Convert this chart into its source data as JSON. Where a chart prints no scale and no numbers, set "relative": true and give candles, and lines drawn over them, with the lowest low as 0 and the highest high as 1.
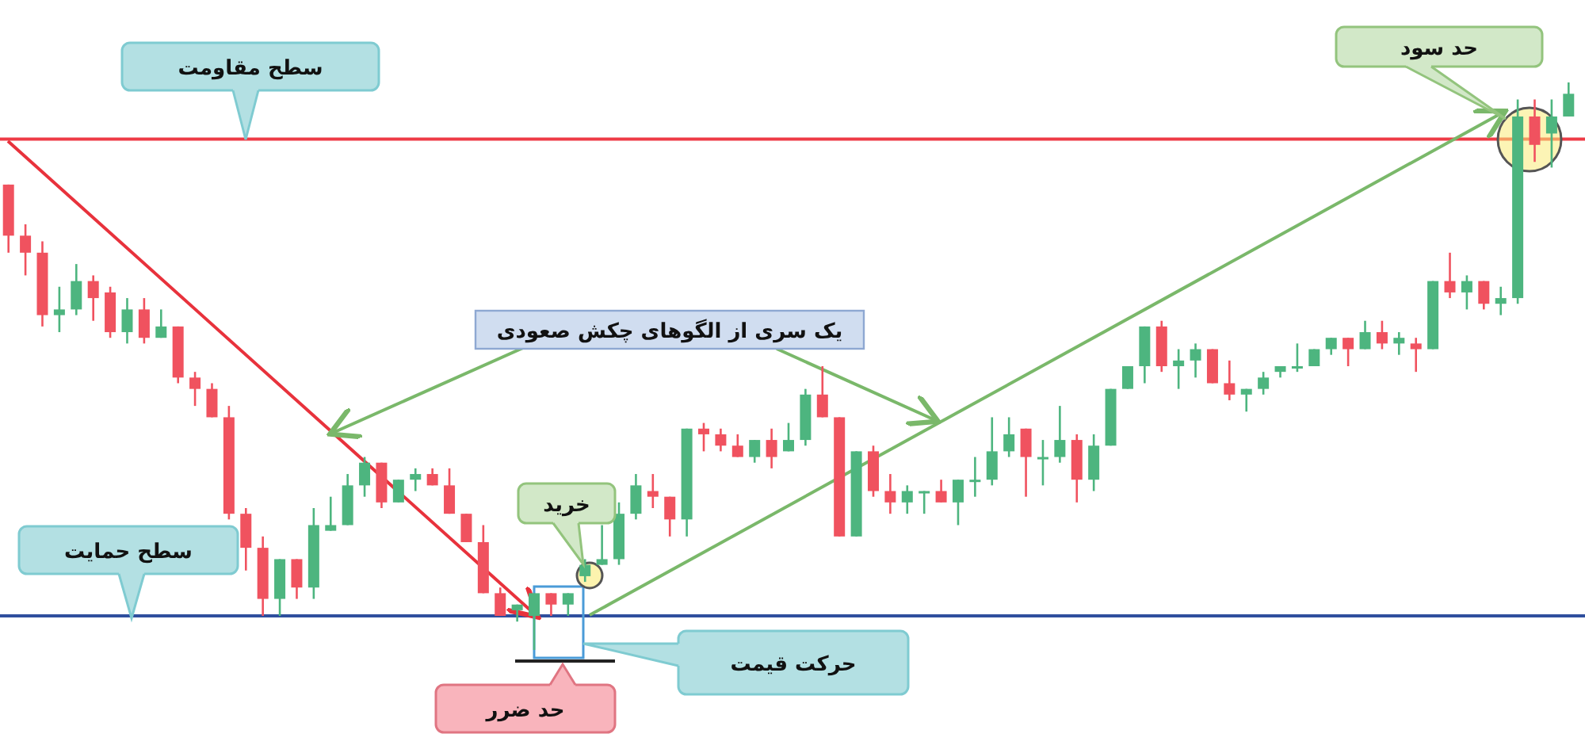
{
  "chart_data": {
    "type": "candlestick",
    "relative": true,
    "categories": [
      null,
      null,
      null,
      null,
      null,
      null,
      null,
      null,
      null,
      null,
      null,
      null,
      null,
      null,
      null,
      null,
      null,
      null,
      null,
      null,
      null,
      null,
      null,
      null,
      null,
      null,
      null,
      null,
      null,
      null,
      null,
      null,
      null,
      null,
      null,
      null,
      null,
      null,
      null,
      null,
      null,
      null,
      null,
      null,
      null,
      null,
      null,
      null,
      null,
      null,
      null,
      null,
      null,
      null,
      null,
      null,
      null,
      null,
      null,
      null,
      null,
      null,
      null,
      null,
      null,
      null,
      null,
      null,
      null,
      null,
      null,
      null,
      null,
      null,
      null,
      null,
      null,
      null,
      null,
      null,
      null,
      null,
      null,
      null,
      null,
      null,
      null,
      null,
      null,
      null,
      null,
      null,
      null
    ],
    "ohlc": [
      [
        0.82,
        0.82,
        0.7,
        0.73
      ],
      [
        0.73,
        0.75,
        0.66,
        0.7
      ],
      [
        0.7,
        0.72,
        0.57,
        0.59
      ],
      [
        0.59,
        0.64,
        0.56,
        0.6
      ],
      [
        0.6,
        0.68,
        0.59,
        0.65
      ],
      [
        0.65,
        0.66,
        0.58,
        0.62
      ],
      [
        0.63,
        0.64,
        0.55,
        0.56
      ],
      [
        0.56,
        0.62,
        0.54,
        0.6
      ],
      [
        0.6,
        0.62,
        0.54,
        0.55
      ],
      [
        0.55,
        0.6,
        0.55,
        0.57
      ],
      [
        0.57,
        0.57,
        0.47,
        0.48
      ],
      [
        0.48,
        0.49,
        0.43,
        0.46
      ],
      [
        0.46,
        0.47,
        0.41,
        0.41
      ],
      [
        0.41,
        0.43,
        0.23,
        0.24
      ],
      [
        0.24,
        0.25,
        0.14,
        0.18
      ],
      [
        0.18,
        0.2,
        0.06,
        0.09
      ],
      [
        0.09,
        0.16,
        0.06,
        0.16
      ],
      [
        0.16,
        0.16,
        0.09,
        0.11
      ],
      [
        0.11,
        0.25,
        0.09,
        0.22
      ],
      [
        0.21,
        0.27,
        0.21,
        0.22
      ],
      [
        0.22,
        0.31,
        0.22,
        0.29
      ],
      [
        0.29,
        0.34,
        0.27,
        0.33
      ],
      [
        0.33,
        0.33,
        0.25,
        0.26
      ],
      [
        0.26,
        0.3,
        0.26,
        0.3
      ],
      [
        0.3,
        0.32,
        0.28,
        0.31
      ],
      [
        0.31,
        0.32,
        0.29,
        0.29
      ],
      [
        0.29,
        0.32,
        0.24,
        0.24
      ],
      [
        0.24,
        0.24,
        0.19,
        0.19
      ],
      [
        0.19,
        0.22,
        0.1,
        0.1
      ],
      [
        0.1,
        0.11,
        0.06,
        0.06
      ],
      [
        0.07,
        0.08,
        0.05,
        0.08
      ],
      [
        0.06,
        0.1,
        0,
        0.1
      ],
      [
        0.1,
        0.1,
        0.06,
        0.08
      ],
      [
        0.08,
        0.1,
        0.06,
        0.1
      ],
      [
        0.13,
        0.16,
        0.12,
        0.15
      ],
      [
        0.15,
        0.22,
        0.15,
        0.16
      ],
      [
        0.16,
        0.26,
        0.15,
        0.24
      ],
      [
        0.24,
        0.31,
        0.23,
        0.29
      ],
      [
        0.28,
        0.31,
        0.25,
        0.27
      ],
      [
        0.27,
        0.27,
        0.2,
        0.23
      ],
      [
        0.23,
        0.39,
        0.2,
        0.39
      ],
      [
        0.39,
        0.4,
        0.35,
        0.38
      ],
      [
        0.38,
        0.39,
        0.35,
        0.36
      ],
      [
        0.36,
        0.38,
        0.34,
        0.34
      ],
      [
        0.34,
        0.37,
        0.33,
        0.37
      ],
      [
        0.37,
        0.39,
        0.32,
        0.34
      ],
      [
        0.35,
        0.4,
        0.35,
        0.37
      ],
      [
        0.37,
        0.46,
        0.36,
        0.45
      ],
      [
        0.45,
        0.5,
        0.41,
        0.41
      ],
      [
        0.41,
        0.41,
        0.2,
        0.2
      ],
      [
        0.2,
        0.35,
        0.2,
        0.35
      ],
      [
        0.35,
        0.36,
        0.27,
        0.28
      ],
      [
        0.28,
        0.31,
        0.24,
        0.26
      ],
      [
        0.26,
        0.29,
        0.24,
        0.28
      ],
      [
        0.28,
        0.28,
        0.24,
        0.28
      ],
      [
        0.28,
        0.3,
        0.26,
        0.26
      ],
      [
        0.26,
        0.3,
        0.22,
        0.3
      ],
      [
        0.3,
        0.34,
        0.27,
        0.3
      ],
      [
        0.3,
        0.41,
        0.29,
        0.35
      ],
      [
        0.35,
        0.41,
        0.34,
        0.38
      ],
      [
        0.39,
        0.39,
        0.27,
        0.34
      ],
      [
        0.34,
        0.37,
        0.29,
        0.34
      ],
      [
        0.34,
        0.43,
        0.33,
        0.37
      ],
      [
        0.37,
        0.38,
        0.26,
        0.3
      ],
      [
        0.3,
        0.38,
        0.28,
        0.36
      ],
      [
        0.36,
        0.46,
        0.36,
        0.46
      ],
      [
        0.46,
        0.5,
        0.46,
        0.5
      ],
      [
        0.5,
        0.57,
        0.47,
        0.57
      ],
      [
        0.57,
        0.58,
        0.49,
        0.5
      ],
      [
        0.5,
        0.53,
        0.46,
        0.51
      ],
      [
        0.51,
        0.54,
        0.48,
        0.53
      ],
      [
        0.53,
        0.53,
        0.47,
        0.47
      ],
      [
        0.47,
        0.51,
        0.44,
        0.45
      ],
      [
        0.45,
        0.46,
        0.42,
        0.46
      ],
      [
        0.46,
        0.49,
        0.45,
        0.48
      ],
      [
        0.49,
        0.5,
        0.48,
        0.5
      ],
      [
        0.5,
        0.54,
        0.49,
        0.5
      ],
      [
        0.5,
        0.53,
        0.5,
        0.53
      ],
      [
        0.53,
        0.55,
        0.52,
        0.55
      ],
      [
        0.55,
        0.55,
        0.5,
        0.53
      ],
      [
        0.53,
        0.58,
        0.53,
        0.56
      ],
      [
        0.56,
        0.58,
        0.53,
        0.54
      ],
      [
        0.54,
        0.56,
        0.52,
        0.55
      ],
      [
        0.54,
        0.55,
        0.49,
        0.53
      ],
      [
        0.53,
        0.65,
        0.53,
        0.65
      ],
      [
        0.65,
        0.7,
        0.62,
        0.63
      ],
      [
        0.63,
        0.66,
        0.6,
        0.65
      ],
      [
        0.65,
        0.65,
        0.6,
        0.61
      ],
      [
        0.61,
        0.64,
        0.59,
        0.62
      ],
      [
        0.62,
        0.97,
        0.61,
        0.94
      ],
      [
        0.94,
        0.97,
        0.86,
        0.89
      ],
      [
        0.91,
        0.97,
        0.85,
        0.94
      ],
      [
        0.94,
        1,
        0.94,
        0.98
      ]
    ],
    "ref_lines": [
      {
        "axis": "y",
        "value": 0.9,
        "label": "سطح مقاومت",
        "color": "#ee3b46"
      },
      {
        "axis": "y",
        "value": 0.06,
        "label": "سطح حمایت",
        "color": "#2f4f9e"
      }
    ],
    "annotations": [
      "یک سری از الگوهای چکش صعودی",
      "خرید",
      "حد ضرر",
      "حرکت قیمت",
      "حد سود"
    ]
  }
}
